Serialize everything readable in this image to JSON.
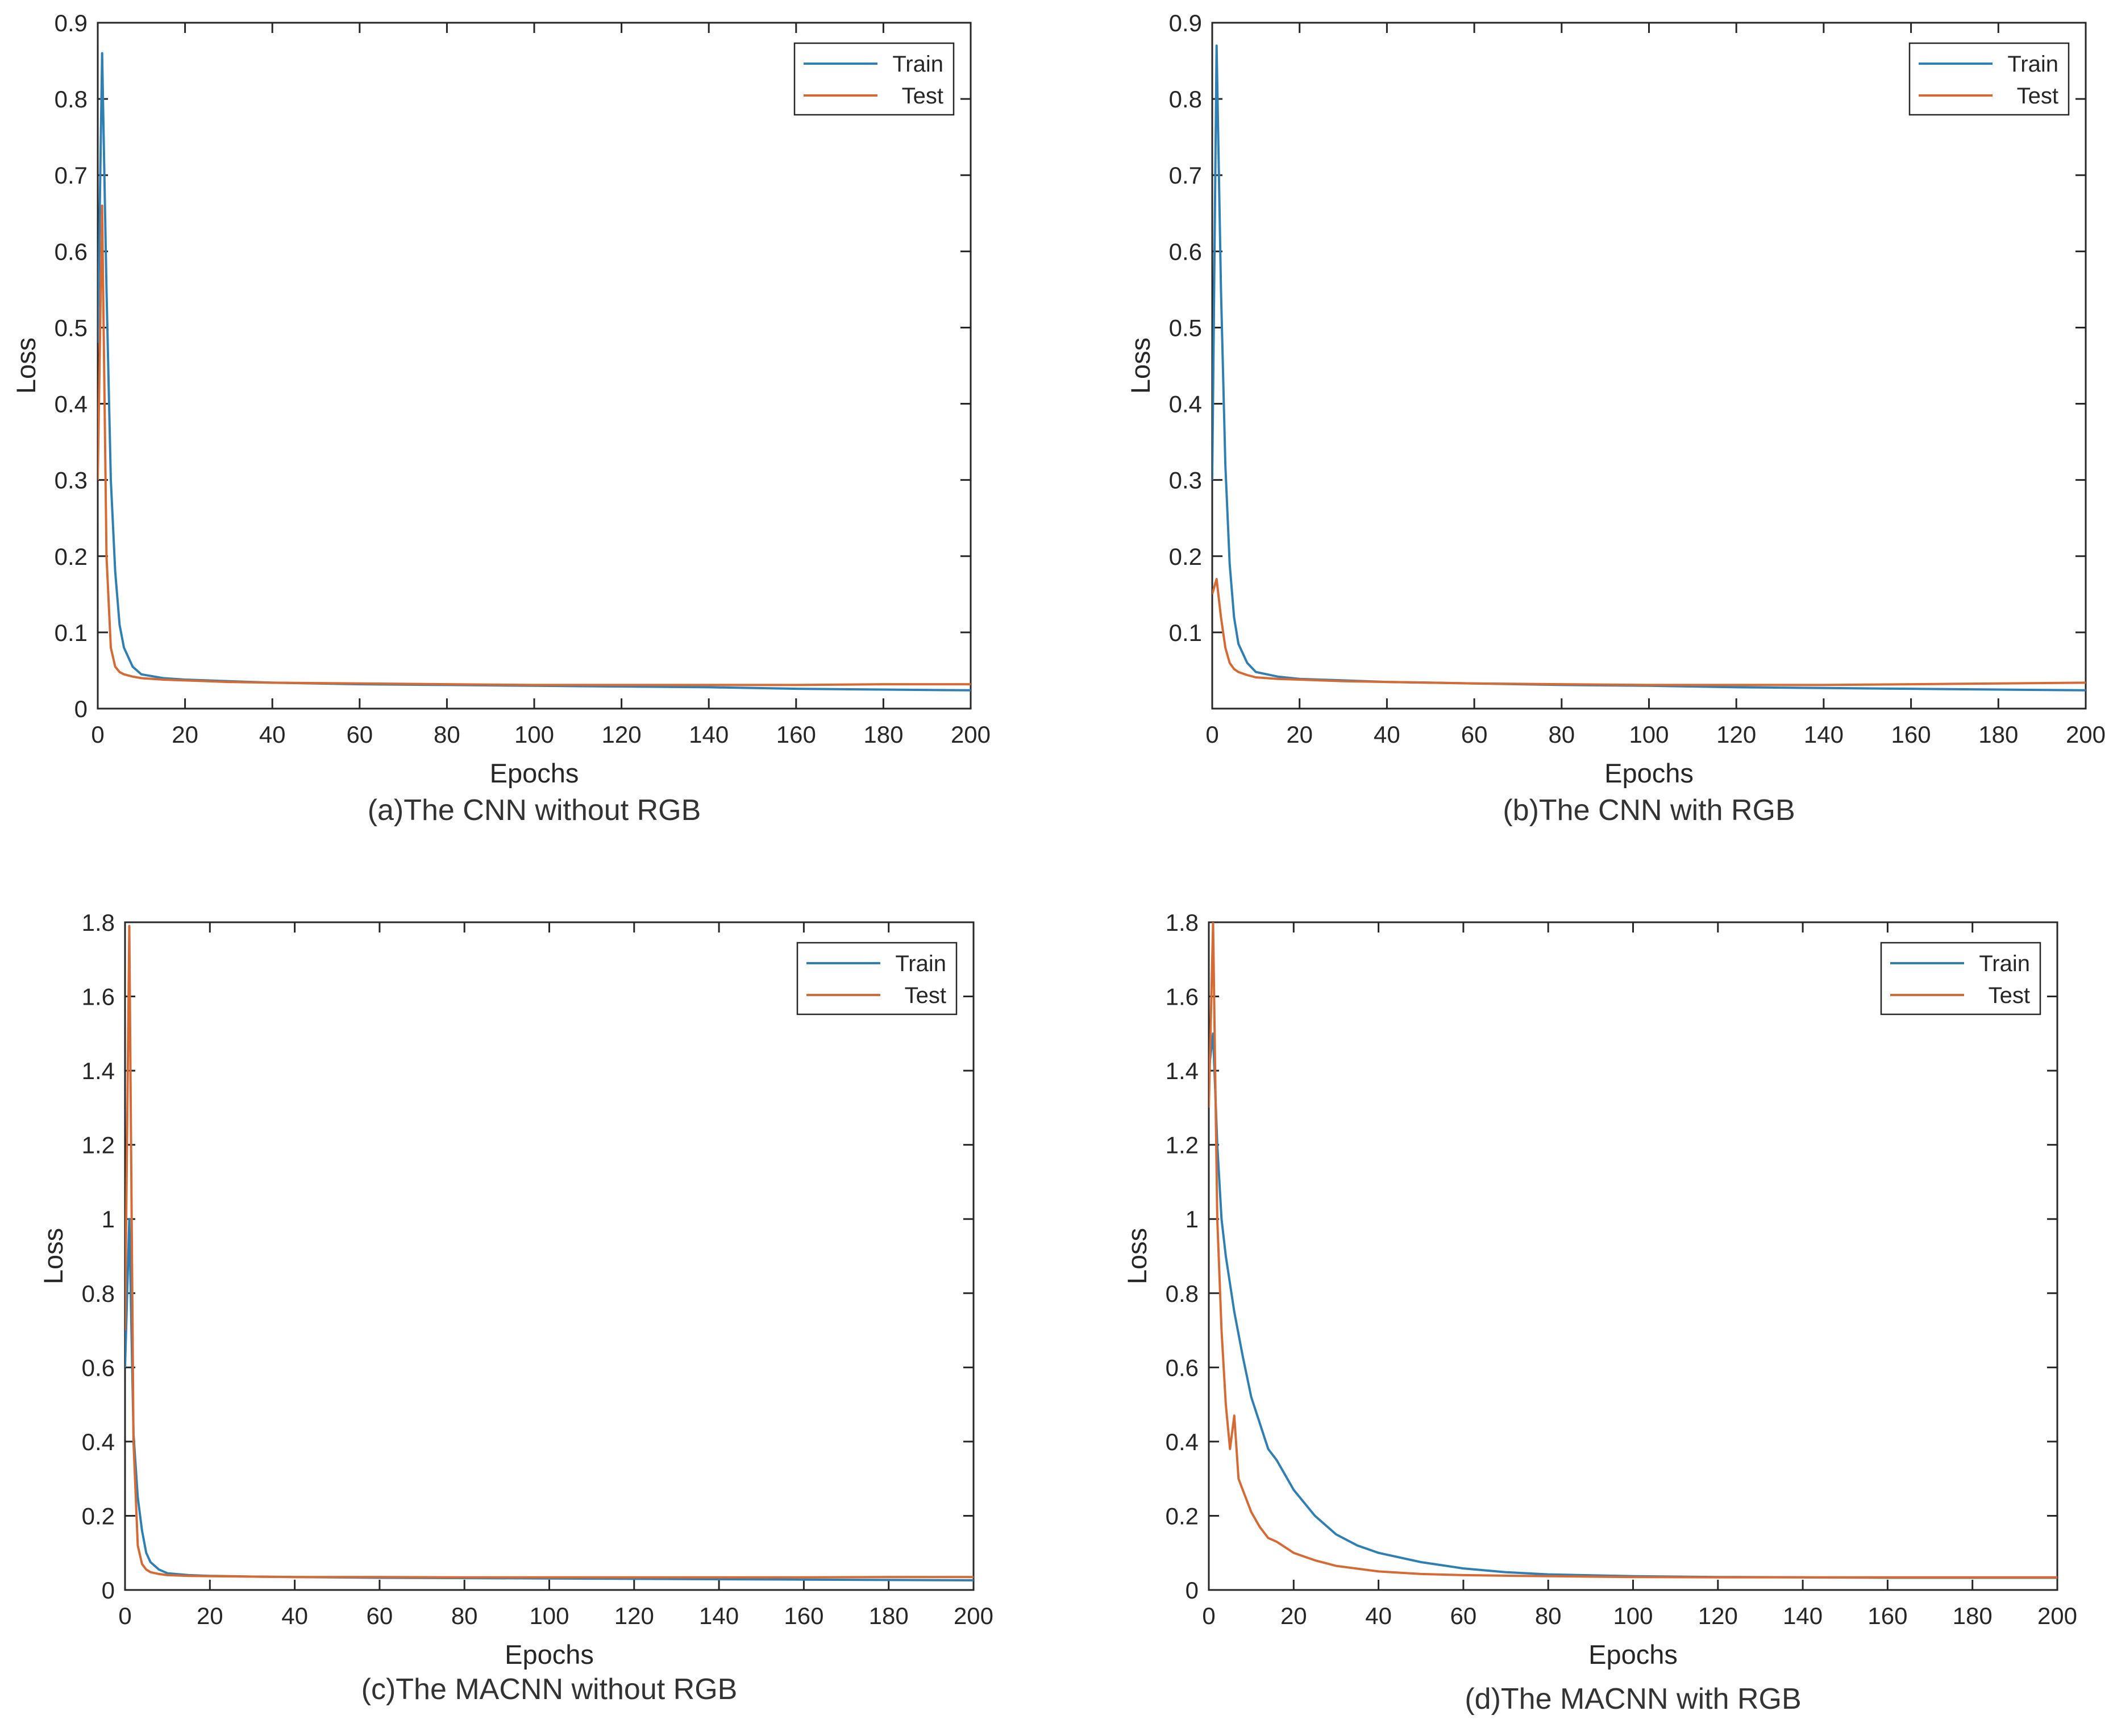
{
  "colors": {
    "train": "#2f7fb3",
    "test": "#d66a35",
    "axis": "#262626",
    "grid": "#ffffff"
  },
  "chart_data": [
    {
      "type": "line",
      "caption": "(a)The CNN without RGB",
      "xlabel": "Epochs",
      "ylabel": "Loss",
      "xlim": [
        0,
        200
      ],
      "ylim": [
        0,
        0.9
      ],
      "xticks": [
        0,
        20,
        40,
        60,
        80,
        100,
        120,
        140,
        160,
        180,
        200
      ],
      "xtick_labels": [
        "0",
        "20",
        "40",
        "60",
        "80",
        "100",
        "120",
        "140",
        "160",
        "180",
        "200"
      ],
      "yticks": [
        0,
        0.1,
        0.2,
        0.3,
        0.4,
        0.5,
        0.6,
        0.7,
        0.8,
        0.9
      ],
      "ytick_labels": [
        "0",
        "0.1",
        "0.2",
        "0.3",
        "0.4",
        "0.5",
        "0.6",
        "0.7",
        "0.8",
        "0.9"
      ],
      "legend_position": "top-right",
      "series": [
        {
          "name": "Train",
          "color": "#2f7fb3",
          "x": [
            0,
            1,
            2,
            3,
            4,
            5,
            6,
            8,
            10,
            15,
            20,
            30,
            40,
            60,
            80,
            100,
            120,
            140,
            160,
            180,
            200
          ],
          "y": [
            0.48,
            0.86,
            0.55,
            0.3,
            0.18,
            0.11,
            0.08,
            0.055,
            0.045,
            0.04,
            0.038,
            0.036,
            0.034,
            0.032,
            0.031,
            0.03,
            0.029,
            0.028,
            0.026,
            0.025,
            0.024
          ]
        },
        {
          "name": "Test",
          "color": "#d66a35",
          "x": [
            0,
            1,
            2,
            3,
            4,
            5,
            6,
            8,
            10,
            15,
            20,
            30,
            40,
            60,
            80,
            100,
            120,
            140,
            160,
            180,
            200
          ],
          "y": [
            0.3,
            0.66,
            0.2,
            0.08,
            0.055,
            0.048,
            0.045,
            0.042,
            0.04,
            0.038,
            0.037,
            0.035,
            0.034,
            0.033,
            0.032,
            0.031,
            0.031,
            0.031,
            0.031,
            0.032,
            0.032
          ]
        }
      ]
    },
    {
      "type": "line",
      "caption": "(b)The CNN with RGB",
      "xlabel": "Epochs",
      "ylabel": "Loss",
      "xlim": [
        0,
        200
      ],
      "ylim": [
        0,
        0.9
      ],
      "xticks": [
        0,
        20,
        40,
        60,
        80,
        100,
        120,
        140,
        160,
        180,
        200
      ],
      "xtick_labels": [
        "0",
        "20",
        "40",
        "60",
        "80",
        "100",
        "120",
        "140",
        "160",
        "180",
        "200"
      ],
      "yticks": [
        0.1,
        0.2,
        0.3,
        0.4,
        0.5,
        0.6,
        0.7,
        0.8,
        0.9
      ],
      "ytick_labels": [
        "0.1",
        "0.2",
        "0.3",
        "0.4",
        "0.5",
        "0.6",
        "0.7",
        "0.8",
        "0.9"
      ],
      "legend_position": "top-right",
      "series": [
        {
          "name": "Train",
          "color": "#2f7fb3",
          "x": [
            0,
            1,
            2,
            3,
            4,
            5,
            6,
            8,
            10,
            15,
            20,
            30,
            40,
            60,
            80,
            100,
            120,
            140,
            160,
            180,
            200
          ],
          "y": [
            0.3,
            0.87,
            0.55,
            0.32,
            0.19,
            0.12,
            0.085,
            0.06,
            0.048,
            0.042,
            0.039,
            0.037,
            0.035,
            0.033,
            0.031,
            0.03,
            0.028,
            0.027,
            0.026,
            0.025,
            0.024
          ]
        },
        {
          "name": "Test",
          "color": "#d66a35",
          "x": [
            0,
            1,
            2,
            3,
            4,
            5,
            6,
            8,
            10,
            15,
            20,
            30,
            40,
            60,
            80,
            100,
            120,
            140,
            160,
            180,
            200
          ],
          "y": [
            0.15,
            0.17,
            0.12,
            0.08,
            0.06,
            0.052,
            0.048,
            0.044,
            0.041,
            0.039,
            0.038,
            0.036,
            0.035,
            0.033,
            0.032,
            0.031,
            0.031,
            0.031,
            0.032,
            0.033,
            0.034
          ]
        }
      ]
    },
    {
      "type": "line",
      "caption": "(c)The MACNN without RGB",
      "xlabel": "Epochs",
      "ylabel": "Loss",
      "xlim": [
        0,
        200
      ],
      "ylim": [
        0,
        1.8
      ],
      "xticks": [
        0,
        20,
        40,
        60,
        80,
        100,
        120,
        140,
        160,
        180,
        200
      ],
      "xtick_labels": [
        "0",
        "20",
        "40",
        "60",
        "80",
        "100",
        "120",
        "140",
        "160",
        "180",
        "200"
      ],
      "yticks": [
        0,
        0.2,
        0.4,
        0.6,
        0.8,
        1.0,
        1.2,
        1.4,
        1.6,
        1.8
      ],
      "ytick_labels": [
        "0",
        "0.2",
        "0.4",
        "0.6",
        "0.8",
        "1",
        "1.2",
        "1.4",
        "1.6",
        "1.8"
      ],
      "legend_position": "top-right",
      "series": [
        {
          "name": "Train",
          "color": "#2f7fb3",
          "x": [
            0,
            1,
            2,
            3,
            4,
            5,
            6,
            8,
            10,
            15,
            20,
            30,
            40,
            60,
            80,
            100,
            120,
            140,
            160,
            180,
            200
          ],
          "y": [
            0.6,
            1.0,
            0.42,
            0.25,
            0.16,
            0.1,
            0.075,
            0.055,
            0.045,
            0.04,
            0.038,
            0.036,
            0.035,
            0.033,
            0.032,
            0.031,
            0.03,
            0.029,
            0.028,
            0.027,
            0.026
          ]
        },
        {
          "name": "Test",
          "color": "#d66a35",
          "x": [
            0,
            1,
            2,
            3,
            4,
            5,
            6,
            8,
            10,
            15,
            20,
            30,
            40,
            60,
            80,
            100,
            120,
            140,
            160,
            180,
            200
          ],
          "y": [
            0.7,
            1.79,
            0.4,
            0.12,
            0.07,
            0.055,
            0.048,
            0.043,
            0.04,
            0.038,
            0.037,
            0.036,
            0.035,
            0.035,
            0.034,
            0.034,
            0.034,
            0.034,
            0.034,
            0.035,
            0.035
          ]
        }
      ]
    },
    {
      "type": "line",
      "caption": "(d)The MACNN with RGB",
      "xlabel": "Epochs",
      "ylabel": "Loss",
      "xlim": [
        0,
        200
      ],
      "ylim": [
        0,
        1.8
      ],
      "xticks": [
        0,
        20,
        40,
        60,
        80,
        100,
        120,
        140,
        160,
        180,
        200
      ],
      "xtick_labels": [
        "0",
        "20",
        "40",
        "60",
        "80",
        "100",
        "120",
        "140",
        "160",
        "180",
        "200"
      ],
      "yticks": [
        0,
        0.2,
        0.4,
        0.6,
        0.8,
        1.0,
        1.2,
        1.4,
        1.6,
        1.8
      ],
      "ytick_labels": [
        "0",
        "0.2",
        "0.4",
        "0.6",
        "0.8",
        "1",
        "1.2",
        "1.4",
        "1.6",
        "1.8"
      ],
      "legend_position": "top-right",
      "series": [
        {
          "name": "Train",
          "color": "#2f7fb3",
          "x": [
            0,
            1,
            2,
            3,
            4,
            6,
            8,
            10,
            12,
            14,
            16,
            20,
            25,
            30,
            35,
            40,
            50,
            60,
            70,
            80,
            100,
            120,
            140,
            160,
            180,
            200
          ],
          "y": [
            1.4,
            1.5,
            1.2,
            1.0,
            0.9,
            0.75,
            0.63,
            0.52,
            0.45,
            0.38,
            0.35,
            0.27,
            0.2,
            0.15,
            0.12,
            0.1,
            0.075,
            0.058,
            0.048,
            0.042,
            0.037,
            0.035,
            0.034,
            0.033,
            0.033,
            0.033
          ]
        },
        {
          "name": "Test",
          "color": "#d66a35",
          "x": [
            0,
            1,
            2,
            3,
            4,
            5,
            6,
            7,
            8,
            10,
            12,
            14,
            16,
            20,
            25,
            30,
            40,
            50,
            60,
            80,
            100,
            120,
            140,
            160,
            180,
            200
          ],
          "y": [
            1.3,
            1.8,
            1.0,
            0.7,
            0.5,
            0.38,
            0.47,
            0.3,
            0.27,
            0.21,
            0.17,
            0.14,
            0.13,
            0.1,
            0.08,
            0.065,
            0.05,
            0.043,
            0.04,
            0.037,
            0.035,
            0.034,
            0.034,
            0.034,
            0.034,
            0.034
          ]
        }
      ]
    }
  ]
}
